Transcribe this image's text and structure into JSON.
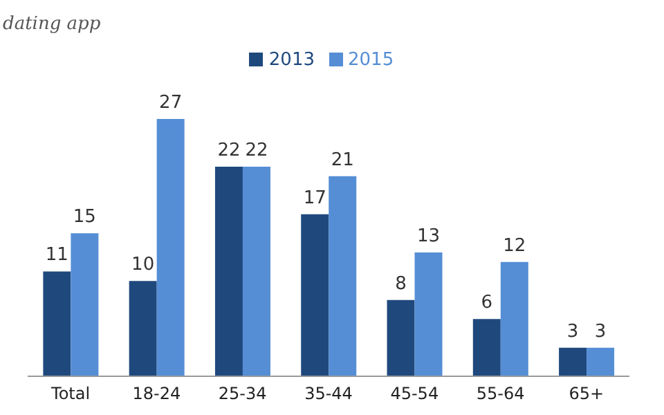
{
  "chart_data": {
    "type": "bar",
    "title": "dating app",
    "categories": [
      "Total",
      "18-24",
      "25-34",
      "35-44",
      "45-54",
      "55-64",
      "65+"
    ],
    "series": [
      {
        "name": "2013",
        "color": "#1f497d",
        "values": [
          11,
          10,
          22,
          17,
          8,
          6,
          3
        ]
      },
      {
        "name": "2015",
        "color": "#558ed5",
        "values": [
          15,
          27,
          22,
          21,
          13,
          12,
          3
        ]
      }
    ],
    "data_labels": true,
    "legend": "top",
    "grid": false
  }
}
